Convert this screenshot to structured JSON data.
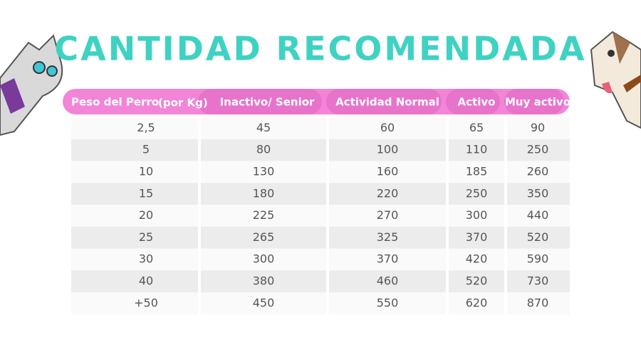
{
  "title": "CANTIDAD RECOMENDADA",
  "table": {
    "headers": [
      "Peso del Perro",
      "Inactivo/ Senior",
      "Actividad Normal",
      "Activo",
      "Muy activo"
    ],
    "unit_note": "(por Kg)",
    "rows": [
      [
        "2,5",
        45,
        60,
        65,
        90
      ],
      [
        5,
        80,
        100,
        110,
        250
      ],
      [
        10,
        130,
        160,
        185,
        260
      ],
      [
        15,
        180,
        220,
        250,
        350
      ],
      [
        20,
        225,
        270,
        300,
        440
      ],
      [
        25,
        265,
        325,
        370,
        520
      ],
      [
        30,
        300,
        370,
        420,
        590
      ],
      [
        40,
        380,
        460,
        520,
        730
      ],
      [
        "+50",
        450,
        550,
        620,
        870
      ]
    ]
  }
}
